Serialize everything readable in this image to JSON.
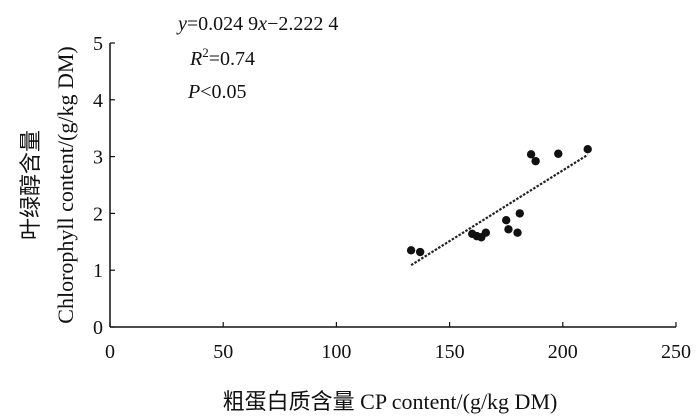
{
  "chart_data": {
    "type": "scatter",
    "title": "",
    "xlabel": "粗蛋白质含量  CP content/(g/kg DM)",
    "ylabel_cn": "叶绿醇含量",
    "ylabel_en": "Chlorophyll content/(g/kg DM)",
    "xlim": [
      0,
      250
    ],
    "ylim": [
      0,
      5
    ],
    "xticks": [
      0,
      50,
      100,
      150,
      200,
      250
    ],
    "yticks": [
      0,
      1,
      2,
      3,
      4,
      5
    ],
    "grid": false,
    "points": [
      {
        "x": 133,
        "y": 1.35
      },
      {
        "x": 137,
        "y": 1.32
      },
      {
        "x": 160,
        "y": 1.64
      },
      {
        "x": 162,
        "y": 1.6
      },
      {
        "x": 164,
        "y": 1.58
      },
      {
        "x": 166,
        "y": 1.66
      },
      {
        "x": 175,
        "y": 1.88
      },
      {
        "x": 176,
        "y": 1.72
      },
      {
        "x": 180,
        "y": 1.66
      },
      {
        "x": 181,
        "y": 2.0
      },
      {
        "x": 186,
        "y": 3.04
      },
      {
        "x": 188,
        "y": 2.92
      },
      {
        "x": 198,
        "y": 3.05
      },
      {
        "x": 211,
        "y": 3.13
      }
    ],
    "fit": {
      "slope": 0.0249,
      "intercept": -2.2224,
      "x_range": [
        133,
        211
      ],
      "style": "dashed"
    },
    "annotations": {
      "equation": "y=0.024 9x−2.222 4",
      "r2": "R²=0.74",
      "p": "P<0.05"
    },
    "colors": {
      "axis": "#111111",
      "point": "#111111",
      "fit": "#222222"
    }
  }
}
